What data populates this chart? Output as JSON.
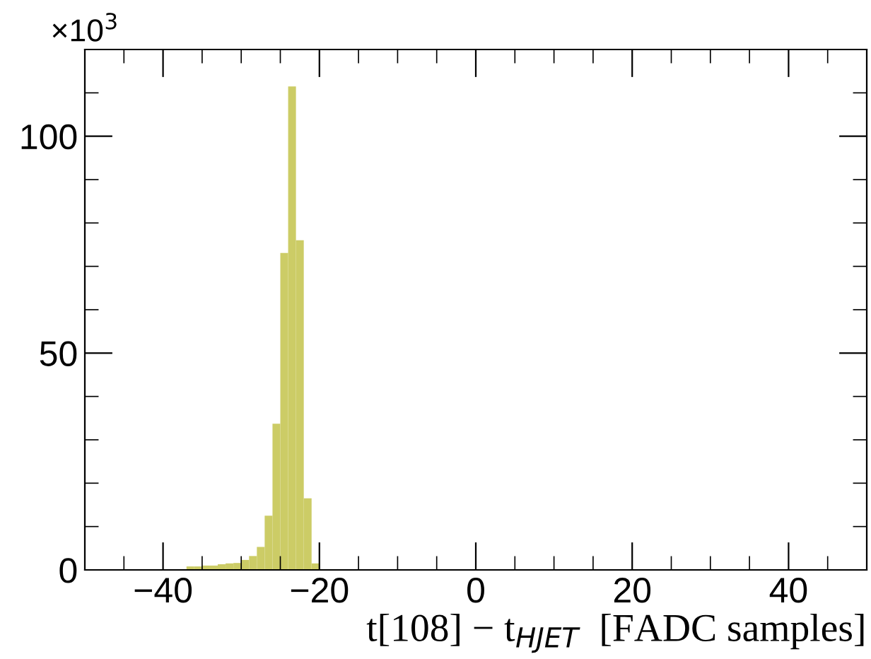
{
  "chart_data": {
    "type": "histogram",
    "xlabel": "t[108] − t$_{HJET}$  [FADC samples]",
    "annotations": [
      "×10$^{3}$"
    ],
    "bins": [
      -37,
      -36,
      -35,
      -34,
      -33,
      -32,
      -31,
      -30,
      -29,
      -28,
      -27,
      -26,
      -25,
      -24,
      -23,
      -22,
      -21,
      -20
    ],
    "values": [
      0.8,
      0.8,
      1.0,
      1.0,
      1.3,
      1.5,
      1.6,
      2.3,
      3.2,
      5.3,
      12.5,
      33.7,
      73.1,
      111.5,
      76,
      16.5,
      1.5
    ],
    "color": "#cccc66",
    "xlim": [
      -50,
      50
    ],
    "ylim": [
      0,
      120
    ],
    "xticks": [
      -40,
      -20,
      0,
      20,
      40
    ],
    "yticks": [
      0,
      50,
      100
    ],
    "grid": false
  }
}
